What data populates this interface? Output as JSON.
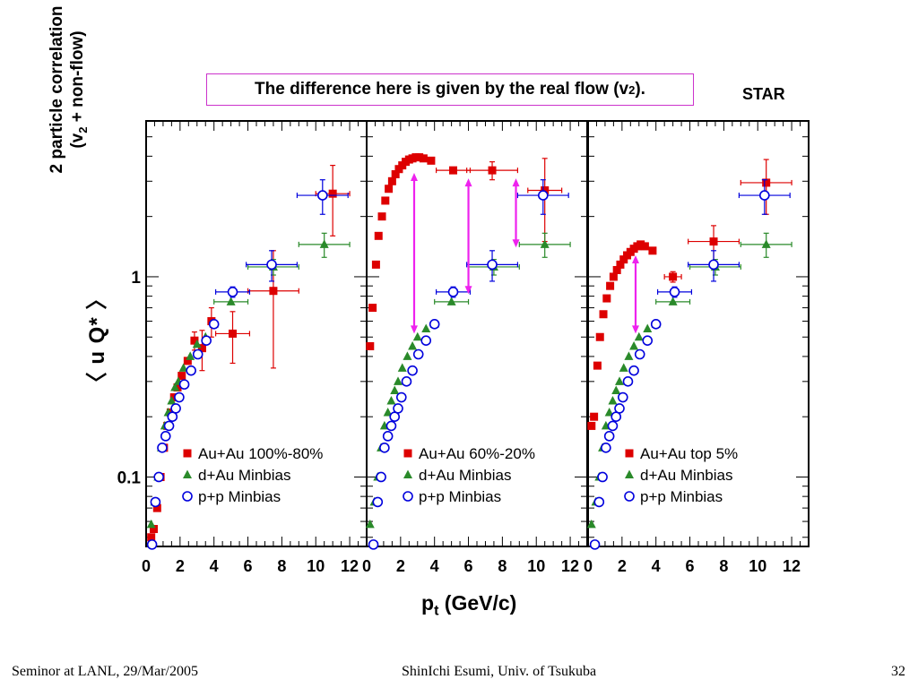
{
  "annotation": {
    "text_main": "The difference here is given by the real flow (v",
    "text_sub": "2",
    "text_end": ")."
  },
  "experiment": "STAR",
  "ylabel": {
    "line1": "2 particle correlation",
    "line2_pre": "(v",
    "line2_sub": "2",
    "line2_post": " + non-flow)",
    "symbol": "〈 u Q* 〉"
  },
  "xlabel": {
    "main": "p",
    "sub": "t",
    "unit": " (GeV/c)"
  },
  "footer": {
    "left": "Seminor at LANL, 29/Mar/2005",
    "center": "ShinIchi Esumi, Univ. of Tsukuba",
    "right": "32"
  },
  "colors": {
    "auau": "#dd0000",
    "dau": "#2a8a2a",
    "pp": "#0000dd",
    "arrow": "#ee22ee"
  },
  "chart_data": [
    {
      "type": "scatter",
      "yscale": "log",
      "xlim": [
        0,
        13
      ],
      "ylim": [
        0.045,
        6
      ],
      "x_ticks": [
        0,
        2,
        4,
        6,
        8,
        10,
        12
      ],
      "y_tick_labels": [
        {
          "value": 0.1,
          "label": "0.1"
        },
        {
          "value": 1,
          "label": "1"
        }
      ],
      "legend": "bottom-right",
      "series": [
        {
          "name": "Au+Au 100%-80%",
          "key": "auau",
          "marker": "square",
          "x": [
            0.3,
            0.45,
            0.65,
            0.85,
            1.05,
            1.25,
            1.45,
            1.65,
            1.85,
            2.1,
            2.45,
            2.85,
            3.3,
            3.85,
            5.1,
            7.5,
            11.0
          ],
          "y": [
            0.05,
            0.055,
            0.07,
            0.1,
            0.14,
            0.18,
            0.21,
            0.25,
            0.28,
            0.32,
            0.38,
            0.48,
            0.44,
            0.6,
            0.52,
            0.85,
            2.6
          ],
          "xerr": [
            0,
            0,
            0,
            0,
            0,
            0,
            0,
            0,
            0,
            0,
            0,
            0,
            0,
            0,
            1.0,
            1.5,
            1.0
          ],
          "yerr": [
            0,
            0,
            0,
            0,
            0,
            0,
            0,
            0,
            0,
            0,
            0,
            0.05,
            0.1,
            0.1,
            0.15,
            0.5,
            1.0
          ]
        },
        {
          "name": "d+Au Minbias",
          "key": "dau",
          "marker": "triangle",
          "x": [
            0.3,
            0.5,
            0.7,
            0.9,
            1.1,
            1.3,
            1.5,
            1.7,
            1.9,
            2.2,
            2.6,
            3.0,
            3.5,
            4.0,
            5.0,
            7.5,
            10.5
          ],
          "y": [
            0.058,
            0.075,
            0.1,
            0.14,
            0.18,
            0.21,
            0.24,
            0.28,
            0.3,
            0.35,
            0.4,
            0.46,
            0.5,
            0.58,
            0.75,
            1.12,
            1.45
          ],
          "xerr": [
            0,
            0,
            0,
            0,
            0,
            0,
            0,
            0,
            0,
            0,
            0,
            0,
            0,
            0,
            1.0,
            1.5,
            1.5
          ],
          "yerr": [
            0,
            0,
            0,
            0,
            0,
            0,
            0,
            0,
            0,
            0,
            0,
            0,
            0,
            0,
            0,
            0.1,
            0.2
          ]
        },
        {
          "name": "p+p Minbias",
          "key": "pp",
          "marker": "circle",
          "x": [
            0.35,
            0.55,
            0.75,
            0.95,
            1.15,
            1.35,
            1.55,
            1.75,
            1.95,
            2.25,
            2.65,
            3.05,
            3.55,
            4.0,
            5.1,
            7.4,
            10.4
          ],
          "y": [
            0.046,
            0.075,
            0.1,
            0.14,
            0.16,
            0.18,
            0.2,
            0.22,
            0.25,
            0.29,
            0.34,
            0.41,
            0.48,
            0.58,
            0.84,
            1.15,
            2.55
          ],
          "xerr": [
            0,
            0,
            0,
            0,
            0,
            0,
            0,
            0,
            0,
            0,
            0,
            0,
            0,
            0,
            1.0,
            1.5,
            1.5
          ],
          "yerr": [
            0,
            0,
            0,
            0,
            0,
            0,
            0,
            0,
            0,
            0,
            0,
            0,
            0,
            0,
            0.05,
            0.2,
            0.5
          ]
        }
      ],
      "arrows": []
    },
    {
      "type": "scatter",
      "yscale": "log",
      "xlim": [
        0,
        13
      ],
      "ylim": [
        0.045,
        6
      ],
      "x_ticks": [
        0,
        2,
        4,
        6,
        8,
        10,
        12
      ],
      "legend": "bottom-right",
      "series": [
        {
          "name": "Au+Au 60%-20%",
          "key": "auau",
          "marker": "square",
          "x": [
            0.2,
            0.35,
            0.55,
            0.7,
            0.9,
            1.1,
            1.3,
            1.5,
            1.7,
            1.9,
            2.1,
            2.3,
            2.5,
            2.7,
            2.9,
            3.1,
            3.35,
            3.8,
            5.1,
            7.4,
            10.5
          ],
          "y": [
            0.45,
            0.7,
            1.15,
            1.6,
            2.0,
            2.4,
            2.75,
            3.0,
            3.25,
            3.45,
            3.6,
            3.75,
            3.85,
            3.9,
            3.95,
            3.95,
            3.9,
            3.8,
            3.4,
            3.4,
            2.7
          ],
          "xerr": [
            0,
            0,
            0,
            0,
            0,
            0,
            0,
            0,
            0,
            0,
            0,
            0,
            0,
            0,
            0,
            0,
            0,
            0,
            1.0,
            1.5,
            1.0
          ],
          "yerr": [
            0,
            0,
            0,
            0,
            0,
            0,
            0,
            0,
            0,
            0,
            0,
            0,
            0,
            0,
            0,
            0,
            0,
            0,
            0,
            0.35,
            1.2
          ]
        },
        {
          "name": "d+Au Minbias",
          "key": "dau",
          "marker": "triangle",
          "x": [
            0.2,
            0.45,
            0.65,
            0.85,
            1.05,
            1.25,
            1.45,
            1.65,
            1.85,
            2.1,
            2.4,
            2.7,
            3.0,
            3.5,
            4.0,
            5.0,
            7.5,
            10.5
          ],
          "y": [
            0.058,
            0.075,
            0.1,
            0.14,
            0.18,
            0.21,
            0.24,
            0.27,
            0.3,
            0.35,
            0.4,
            0.45,
            0.5,
            0.55,
            0.58,
            0.75,
            1.12,
            1.45
          ],
          "xerr": [
            0,
            0,
            0,
            0,
            0,
            0,
            0,
            0,
            0,
            0,
            0,
            0,
            0,
            0,
            0,
            1.0,
            1.5,
            1.5
          ],
          "yerr": [
            0,
            0,
            0,
            0,
            0,
            0,
            0,
            0,
            0,
            0,
            0,
            0,
            0,
            0,
            0,
            0,
            0.1,
            0.2
          ]
        },
        {
          "name": "p+p Minbias",
          "key": "pp",
          "marker": "circle",
          "x": [
            0.4,
            0.65,
            0.85,
            1.05,
            1.25,
            1.45,
            1.65,
            1.85,
            2.05,
            2.35,
            2.7,
            3.05,
            3.5,
            4.0,
            5.1,
            7.4,
            10.4
          ],
          "y": [
            0.046,
            0.075,
            0.1,
            0.14,
            0.16,
            0.18,
            0.2,
            0.22,
            0.25,
            0.3,
            0.34,
            0.41,
            0.48,
            0.58,
            0.84,
            1.15,
            2.55
          ],
          "xerr": [
            0,
            0,
            0,
            0,
            0,
            0,
            0,
            0,
            0,
            0,
            0,
            0,
            0,
            0,
            1.0,
            1.5,
            1.5
          ],
          "yerr": [
            0,
            0,
            0,
            0,
            0,
            0,
            0,
            0,
            0,
            0,
            0,
            0,
            0,
            0,
            0.05,
            0.2,
            0.5
          ]
        }
      ],
      "arrows": [
        {
          "x": 2.8,
          "y_from": 3.3,
          "y_to": 0.52
        },
        {
          "x": 6.0,
          "y_from": 3.1,
          "y_to": 0.82
        },
        {
          "x": 8.8,
          "y_from": 3.1,
          "y_to": 1.4
        }
      ]
    },
    {
      "type": "scatter",
      "yscale": "log",
      "xlim": [
        0,
        13
      ],
      "ylim": [
        0.045,
        6
      ],
      "x_ticks": [
        0,
        2,
        4,
        6,
        8,
        10,
        12
      ],
      "legend": "bottom-right",
      "series": [
        {
          "name": "Au+Au top 5%",
          "key": "auau",
          "marker": "square",
          "x": [
            0.2,
            0.35,
            0.55,
            0.7,
            0.9,
            1.1,
            1.3,
            1.5,
            1.7,
            1.9,
            2.1,
            2.3,
            2.5,
            2.7,
            2.9,
            3.1,
            3.35,
            3.8,
            5.0,
            7.4,
            10.5
          ],
          "y": [
            0.18,
            0.2,
            0.36,
            0.5,
            0.65,
            0.78,
            0.9,
            1.0,
            1.08,
            1.15,
            1.22,
            1.28,
            1.33,
            1.38,
            1.42,
            1.45,
            1.42,
            1.35,
            1.0,
            1.5,
            2.95
          ],
          "xerr": [
            0,
            0,
            0,
            0,
            0,
            0,
            0,
            0,
            0,
            0,
            0,
            0,
            0,
            0,
            0,
            0,
            0,
            0,
            0.5,
            1.5,
            1.5
          ],
          "yerr": [
            0,
            0,
            0,
            0,
            0,
            0,
            0,
            0,
            0,
            0,
            0,
            0,
            0,
            0,
            0,
            0,
            0,
            0,
            0.06,
            0.3,
            0.9
          ]
        },
        {
          "name": "d+Au Minbias",
          "key": "dau",
          "marker": "triangle",
          "x": [
            0.2,
            0.45,
            0.65,
            0.85,
            1.05,
            1.25,
            1.45,
            1.65,
            1.85,
            2.1,
            2.4,
            2.7,
            3.0,
            3.5,
            4.0,
            5.0,
            7.5,
            10.5
          ],
          "y": [
            0.058,
            0.075,
            0.1,
            0.14,
            0.18,
            0.21,
            0.24,
            0.27,
            0.3,
            0.35,
            0.4,
            0.45,
            0.5,
            0.55,
            0.58,
            0.75,
            1.12,
            1.45
          ],
          "xerr": [
            0,
            0,
            0,
            0,
            0,
            0,
            0,
            0,
            0,
            0,
            0,
            0,
            0,
            0,
            0,
            1.0,
            1.5,
            1.5
          ],
          "yerr": [
            0,
            0,
            0,
            0,
            0,
            0,
            0,
            0,
            0,
            0,
            0,
            0,
            0,
            0,
            0,
            0,
            0.1,
            0.2
          ]
        },
        {
          "name": "p+p Minbias",
          "key": "pp",
          "marker": "circle",
          "x": [
            0.4,
            0.65,
            0.85,
            1.05,
            1.25,
            1.45,
            1.65,
            1.85,
            2.05,
            2.35,
            2.7,
            3.05,
            3.5,
            4.0,
            5.1,
            7.4,
            10.4
          ],
          "y": [
            0.046,
            0.075,
            0.1,
            0.14,
            0.16,
            0.18,
            0.2,
            0.22,
            0.25,
            0.3,
            0.34,
            0.41,
            0.48,
            0.58,
            0.84,
            1.15,
            2.55
          ],
          "xerr": [
            0,
            0,
            0,
            0,
            0,
            0,
            0,
            0,
            0,
            0,
            0,
            0,
            0,
            0,
            1.0,
            1.5,
            1.5
          ],
          "yerr": [
            0,
            0,
            0,
            0,
            0,
            0,
            0,
            0,
            0,
            0,
            0,
            0,
            0,
            0,
            0.05,
            0.2,
            0.5
          ]
        }
      ],
      "arrows": [
        {
          "x": 2.8,
          "y_from": 1.28,
          "y_to": 0.52
        }
      ]
    }
  ]
}
